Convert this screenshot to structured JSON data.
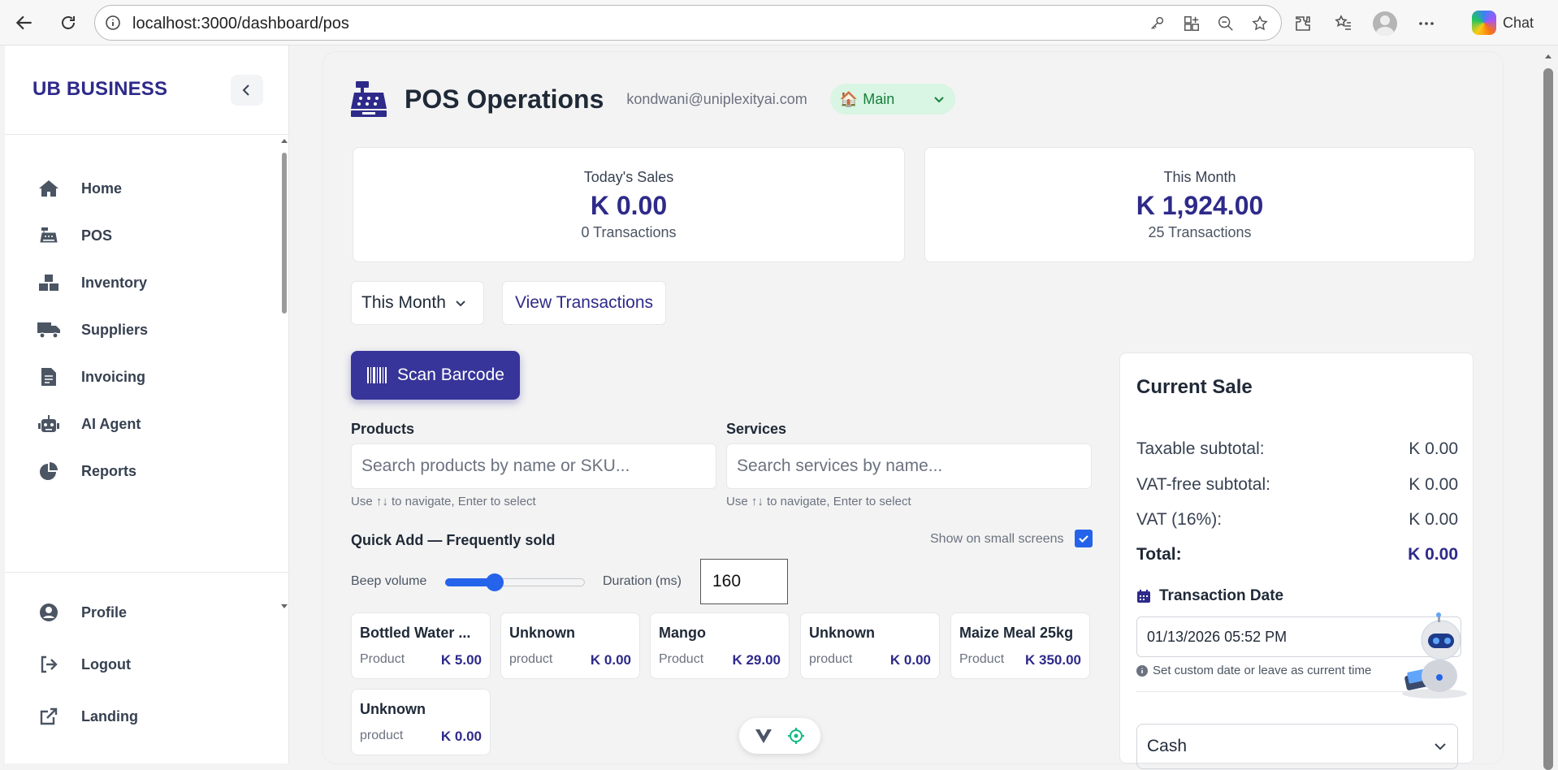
{
  "browser": {
    "url": "localhost:3000/dashboard/pos",
    "chat_label": "Chat"
  },
  "sidebar": {
    "brand": "UB BUSINESS",
    "items": [
      {
        "label": "Home",
        "icon": "home-icon"
      },
      {
        "label": "POS",
        "icon": "cash-register-icon"
      },
      {
        "label": "Inventory",
        "icon": "boxes-icon"
      },
      {
        "label": "Suppliers",
        "icon": "truck-icon"
      },
      {
        "label": "Invoicing",
        "icon": "invoice-icon"
      },
      {
        "label": "AI Agent",
        "icon": "robot-icon"
      },
      {
        "label": "Reports",
        "icon": "pie-chart-icon"
      }
    ],
    "footer": [
      {
        "label": "Profile",
        "icon": "user-circle-icon"
      },
      {
        "label": "Logout",
        "icon": "logout-icon"
      },
      {
        "label": "Landing",
        "icon": "external-link-icon"
      }
    ]
  },
  "header": {
    "title": "POS Operations",
    "email": "kondwani@uniplexityai.com",
    "branch": "Main"
  },
  "stats": {
    "today": {
      "label": "Today's Sales",
      "value": "K 0.00",
      "sub": "0 Transactions"
    },
    "month": {
      "label": "This Month",
      "value": "K 1,924.00",
      "sub": "25 Transactions"
    }
  },
  "controls": {
    "period": "This Month",
    "view_transactions": "View Transactions",
    "scan_barcode": "Scan Barcode"
  },
  "products": {
    "label": "Products",
    "placeholder": "Search products by name or SKU...",
    "hint": "Use ↑↓ to navigate, Enter to select"
  },
  "services": {
    "label": "Services",
    "placeholder": "Search services by name...",
    "hint": "Use ↑↓ to navigate, Enter to select"
  },
  "quick_add": {
    "title": "Quick Add — Frequently sold",
    "small_screens_label": "Show on small screens",
    "small_screens_checked": true,
    "beep_label": "Beep volume",
    "beep_volume": 0.33,
    "duration_label": "Duration (ms)",
    "duration_value": "160",
    "items": [
      {
        "name": "Bottled Water ...",
        "type": "Product",
        "price": "K 5.00"
      },
      {
        "name": "Unknown",
        "type": "product",
        "price": "K 0.00"
      },
      {
        "name": "Mango",
        "type": "Product",
        "price": "K 29.00"
      },
      {
        "name": "Unknown",
        "type": "product",
        "price": "K 0.00"
      },
      {
        "name": "Maize Meal 25kg",
        "type": "Product",
        "price": "K 350.00"
      },
      {
        "name": "Unknown",
        "type": "product",
        "price": "K 0.00"
      }
    ]
  },
  "sale": {
    "title": "Current Sale",
    "taxable_label": "Taxable subtotal:",
    "taxable": "K 0.00",
    "vatfree_label": "VAT-free subtotal:",
    "vatfree": "K 0.00",
    "vat_label": "VAT (16%):",
    "vat": "K 0.00",
    "total_label": "Total:",
    "total": "K 0.00",
    "date_label": "Transaction Date",
    "date_value": "01/13/2026 05:52 PM",
    "date_hint": "Set custom date or leave as current time",
    "payment": "Cash"
  },
  "colors": {
    "brand": "#2e2a8a",
    "accent": "#373599",
    "branch_bg": "#d9f5e3",
    "checkbox": "#2563eb"
  }
}
